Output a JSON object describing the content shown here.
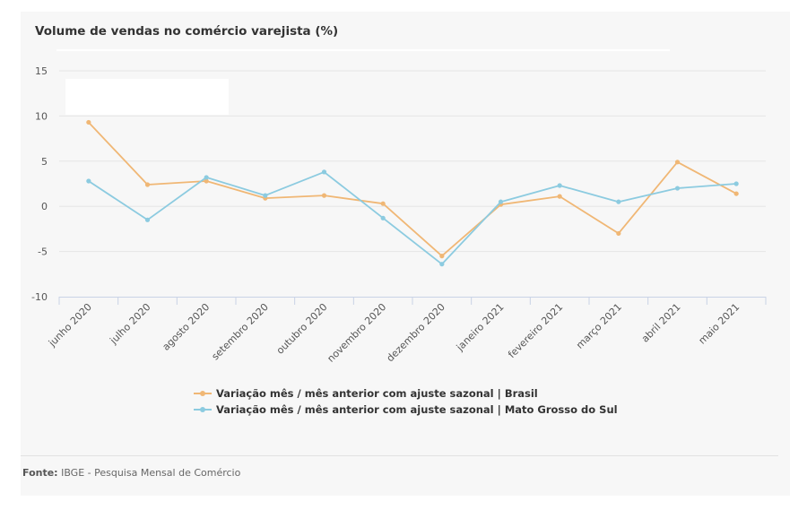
{
  "chart_data": {
    "type": "line",
    "title": "Volume de vendas no comércio varejista (%)",
    "categories": [
      "junho 2020",
      "julho 2020",
      "agosto 2020",
      "setembro 2020",
      "outubro 2020",
      "novembro 2020",
      "dezembro 2020",
      "janeiro 2021",
      "fevereiro 2021",
      "março 2021",
      "abril 2021",
      "maio 2021"
    ],
    "series": [
      {
        "name": "Variação mês / mês anterior com ajuste sazonal | Brasil",
        "color": "#f0b775",
        "values": [
          9.3,
          2.4,
          2.8,
          0.9,
          1.2,
          0.3,
          -5.5,
          0.2,
          1.1,
          -3.0,
          4.9,
          1.4
        ]
      },
      {
        "name": "Variação mês / mês anterior com ajuste sazonal | Mato Grosso do Sul",
        "color": "#8ccbe0",
        "values": [
          2.8,
          -1.5,
          3.2,
          1.2,
          3.8,
          -1.3,
          -6.4,
          0.5,
          2.3,
          0.5,
          2.0,
          2.5
        ]
      }
    ],
    "ylim": [
      -10,
      15
    ],
    "yticks": [
      15,
      10,
      5,
      0,
      -5,
      -10
    ],
    "grid": true,
    "legend": "bottom"
  },
  "source": {
    "label": "Fonte:",
    "text": "IBGE - Pesquisa Mensal de Comércio"
  }
}
